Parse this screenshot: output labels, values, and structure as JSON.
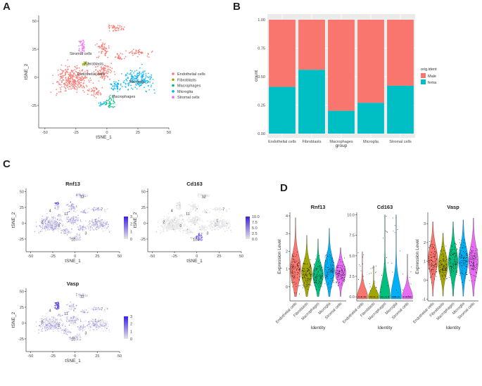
{
  "panels": {
    "A": {
      "letter": "A"
    },
    "B": {
      "letter": "B"
    },
    "C": {
      "letter": "C"
    },
    "D": {
      "letter": "D"
    }
  },
  "cell_types": [
    "Endothelial cells",
    "Fibroblasts",
    "Macrophages",
    "Microglia",
    "Stromal cells"
  ],
  "colors": {
    "Endothelial cells": "#F8766D",
    "Fibroblasts": "#A3A500",
    "Macrophages": "#00BF7D",
    "Microglia": "#00B0F6",
    "Stromal cells": "#E76BF3",
    "male": "#F8766D",
    "fema": "#00BFC4",
    "feature_low": "#e6e6e6",
    "feature_high": "#3a1fe0"
  },
  "chart_data": [
    {
      "id": "A",
      "type": "scatter",
      "xlabel": "tSNE_1",
      "ylabel": "tSNE_2",
      "xticks": [
        -50,
        -25,
        0,
        25,
        50
      ],
      "yticks": [
        -25,
        0,
        25,
        50
      ],
      "xlim": [
        -55,
        50
      ],
      "ylim": [
        -45,
        55
      ],
      "legend": [
        "Endothelial cells",
        "Fibroblasts",
        "Macrophages",
        "Microglia",
        "Stromal cells"
      ],
      "legend_position": "right",
      "annotations": [
        {
          "text": "Stromal cells",
          "x": -30,
          "y": 20
        },
        {
          "text": "Fibroblasts",
          "x": -18,
          "y": 11
        },
        {
          "text": "Endothelial cells",
          "x": -24,
          "y": 2
        },
        {
          "text": "Microglia",
          "x": 18,
          "y": -5
        },
        {
          "text": "Macrophages",
          "x": 4,
          "y": -18
        }
      ]
    },
    {
      "id": "B",
      "type": "bar",
      "stacked": true,
      "categories": [
        "Endothelial cells",
        "Fibroblasts",
        "Macrophages",
        "Microglia",
        "Stromal cells"
      ],
      "series": [
        {
          "name": "Male",
          "values": [
            0.59,
            0.44,
            0.8,
            0.73,
            0.58
          ]
        },
        {
          "name": "fema",
          "values": [
            0.41,
            0.56,
            0.2,
            0.27,
            0.42
          ]
        }
      ],
      "xlabel": "group",
      "ylabel": "count",
      "yticks": [
        "0.00",
        "0.25",
        "0.50",
        "0.75",
        "1.00"
      ],
      "ylim": [
        0,
        1
      ],
      "legend_title": "orig.ident",
      "legend": [
        "Male",
        "fema"
      ],
      "legend_position": "right",
      "grid": true
    },
    {
      "id": "C1",
      "type": "scatter",
      "title": "Rnf13",
      "xlabel": "tSNE_1",
      "ylabel": "tSNE_2",
      "xticks": [
        -50,
        -25,
        0,
        25,
        50
      ],
      "yticks": [
        -25,
        0,
        25,
        50
      ],
      "colorbar_ticks": [
        0,
        1,
        2,
        3
      ],
      "colorbar_max": 3,
      "base_level": 0.75,
      "cluster_labels": [
        "12",
        "4",
        "11",
        "2",
        "7",
        "0",
        "1",
        "3",
        "10"
      ]
    },
    {
      "id": "C2",
      "type": "scatter",
      "title": "Cd163",
      "xlabel": "tSNE_1",
      "ylabel": "tSNE_2",
      "xticks": [
        -50,
        -25,
        0,
        25,
        50
      ],
      "yticks": [
        -25,
        0,
        25,
        50
      ],
      "colorbar_ticks": [
        "0.0",
        "2.5",
        "5.0",
        "7.5",
        "10.0"
      ],
      "colorbar_max": 10,
      "base_level": 0.05,
      "cluster_labels": [
        "12",
        "4",
        "11",
        "2",
        "7",
        "0",
        "1",
        "3",
        "10"
      ]
    },
    {
      "id": "C3",
      "type": "scatter",
      "title": "Vasp",
      "xlabel": "tSNE_1",
      "ylabel": "tSNE_2",
      "xticks": [
        -50,
        -25,
        0,
        25,
        50
      ],
      "yticks": [
        -25,
        0,
        25,
        50
      ],
      "colorbar_ticks": [
        0,
        1,
        2,
        3
      ],
      "colorbar_max": 3,
      "base_level": 0.55,
      "cluster_labels": [
        "12",
        "4",
        "11",
        "2",
        "7",
        "0",
        "1",
        "3",
        "10"
      ]
    },
    {
      "id": "D1",
      "type": "violin",
      "title": "Rnf13",
      "ylabel": "Expression Level",
      "xlabel": "Identity",
      "categories": [
        "Endothelial cells",
        "Fibroblasts",
        "Macrophages",
        "Microglia",
        "Stromal cells"
      ],
      "yticks": [
        0,
        1,
        2,
        3,
        4
      ],
      "ylim": [
        -0.8,
        4.2
      ],
      "centers": [
        1.0,
        0.75,
        0.65,
        0.95,
        0.8
      ],
      "maxima": [
        3.9,
        2.9,
        2.7,
        3.3,
        2.2
      ]
    },
    {
      "id": "D2",
      "type": "violin",
      "title": "Cd163",
      "ylabel": "",
      "xlabel": "Identity",
      "categories": [
        "Endothelial cells",
        "Fibroblasts",
        "Macrophages",
        "Microglia",
        "Stromal cells"
      ],
      "yticks": [
        "0.0",
        "2.5",
        "5.0",
        "7.5",
        "10.0"
      ],
      "ylim": [
        -0.5,
        10.3
      ],
      "centers": [
        0,
        0,
        0,
        0,
        0
      ],
      "maxima": [
        5.5,
        3.8,
        10,
        10,
        5.2
      ]
    },
    {
      "id": "D3",
      "type": "violin",
      "title": "Vasp",
      "ylabel": "Expression Level",
      "xlabel": "Identity",
      "categories": [
        "Endothelial cells",
        "Fibroblasts",
        "Macrophages",
        "Microglia",
        "Stromal cells"
      ],
      "yticks": [
        -1,
        0,
        1,
        2,
        3
      ],
      "ylim": [
        -1.1,
        3.6
      ],
      "centers": [
        1.1,
        0.8,
        1.0,
        1.05,
        1.0
      ],
      "maxima": [
        3.1,
        2.5,
        3.1,
        3.2,
        3.3
      ]
    }
  ]
}
